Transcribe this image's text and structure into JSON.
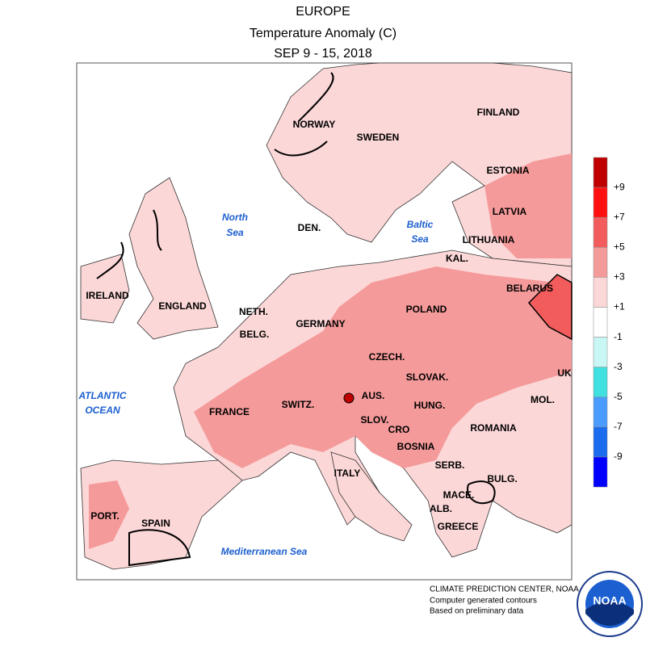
{
  "header": {
    "title": "EUROPE",
    "subtitle": "Temperature Anomaly (C)",
    "period": "SEP 9 - 15, 2018"
  },
  "labels": {
    "norway": "NORWAY",
    "sweden": "SWEDEN",
    "finland": "FINLAND",
    "estonia": "ESTONIA",
    "latvia": "LATVIA",
    "lithuania": "LITHUANIA",
    "denmark": "DEN.",
    "kaliningrad": "KAL.",
    "belarus": "BELARUS",
    "ireland": "IRELAND",
    "england": "ENGLAND",
    "netherlands": "NETH.",
    "belgium": "BELG.",
    "germany": "GERMANY",
    "poland": "POLAND",
    "czech": "CZECH.",
    "slovakia": "SLOVAK.",
    "ukraine": "UK",
    "austria": "AUS.",
    "switzerland": "SWITZ.",
    "france": "FRANCE",
    "hungary": "HUNG.",
    "slovenia": "SLOV.",
    "croatia": "CRO",
    "moldova": "MOL.",
    "romania": "ROMANIA",
    "bosnia": "BOSNIA",
    "italy": "ITALY",
    "serbia": "SERB.",
    "bulgaria": "BULG.",
    "portugal": "PORT.",
    "spain": "SPAIN",
    "macedonia": "MACE.",
    "albania": "ALB.",
    "greece": "GREECE"
  },
  "seas": {
    "north_sea": [
      "North",
      "Sea"
    ],
    "baltic_sea": [
      "Baltic",
      "Sea"
    ],
    "atlantic": [
      "ATLANTIC",
      "OCEAN"
    ],
    "mediterranean": "Mediterranean Sea"
  },
  "legend": {
    "labels": [
      "+9",
      "+7",
      "+5",
      "+3",
      "+1",
      "-1",
      "-3",
      "-5",
      "-7",
      "-9"
    ],
    "colors": [
      "#c00000",
      "#ff1010",
      "#f25c5c",
      "#f59a9a",
      "#fcd7d7",
      "#ffffff",
      "#c8f7f5",
      "#40e0e0",
      "#4c9cff",
      "#1c6cf0",
      "#0000ff"
    ]
  },
  "credits": [
    "CLIMATE PREDICTION CENTER, NOAA",
    "Computer generated contours",
    "Based on preliminary data"
  ],
  "logo": "NOAA"
}
